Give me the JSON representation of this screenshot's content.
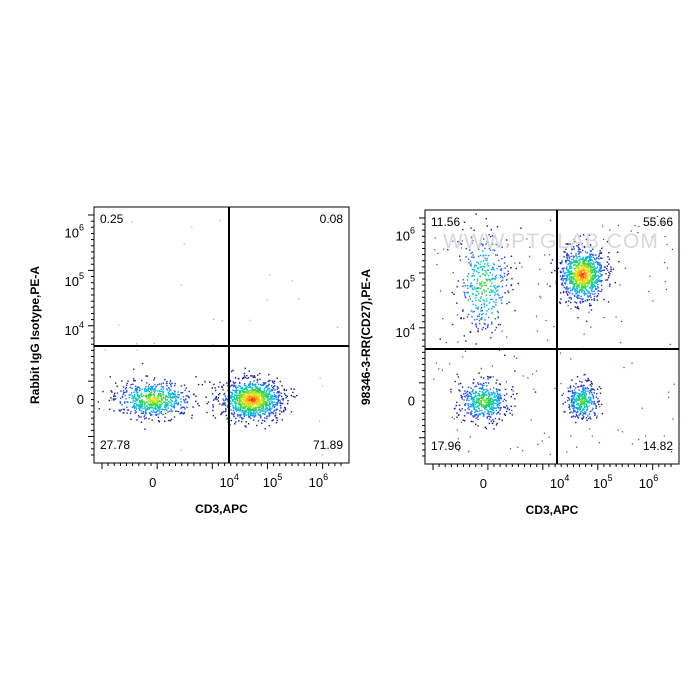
{
  "chart_data": [
    {
      "type": "scatter",
      "xlabel": "CD3,APC",
      "ylabel": "Rabbit IgG Isotype,PE-A",
      "x_ticks": [
        {
          "base": "0",
          "exp": ""
        },
        {
          "base": "10",
          "exp": "4"
        },
        {
          "base": "10",
          "exp": "5"
        },
        {
          "base": "10",
          "exp": "6"
        }
      ],
      "y_ticks": [
        {
          "base": "0",
          "exp": ""
        },
        {
          "base": "10",
          "exp": "4"
        },
        {
          "base": "10",
          "exp": "5"
        },
        {
          "base": "10",
          "exp": "6"
        }
      ],
      "quadrants": {
        "top_left": "0.25",
        "top_right": "0.08",
        "bottom_left": "27.78",
        "bottom_right": "71.89"
      },
      "populations": [
        {
          "label": "CD3- isotype",
          "x": 0,
          "y": 0,
          "share": 0.28
        },
        {
          "label": "CD3+ isotype",
          "x": 31623,
          "y": 0,
          "share": 0.72
        }
      ]
    },
    {
      "type": "scatter",
      "xlabel": "CD3,APC",
      "ylabel": "98346-3-RR(CD27),PE-A",
      "watermark": "WWW.PTGLAB.COM",
      "x_ticks": [
        {
          "base": "0",
          "exp": ""
        },
        {
          "base": "10",
          "exp": "4"
        },
        {
          "base": "10",
          "exp": "5"
        },
        {
          "base": "10",
          "exp": "6"
        }
      ],
      "y_ticks": [
        {
          "base": "0",
          "exp": ""
        },
        {
          "base": "10",
          "exp": "4"
        },
        {
          "base": "10",
          "exp": "5"
        },
        {
          "base": "10",
          "exp": "6"
        }
      ],
      "quadrants": {
        "top_left": "11.56",
        "top_right": "55.66",
        "bottom_left": "17.96",
        "bottom_right": "14.82"
      },
      "populations": [
        {
          "label": "CD3- CD27+",
          "x": 0,
          "y": 100000,
          "share": 0.12
        },
        {
          "label": "CD3+ CD27+",
          "x": 31623,
          "y": 158489,
          "share": 0.56
        },
        {
          "label": "CD3- CD27-",
          "x": 0,
          "y": 0,
          "share": 0.18
        },
        {
          "label": "CD3+ CD27-",
          "x": 31623,
          "y": 0,
          "share": 0.15
        }
      ]
    }
  ]
}
